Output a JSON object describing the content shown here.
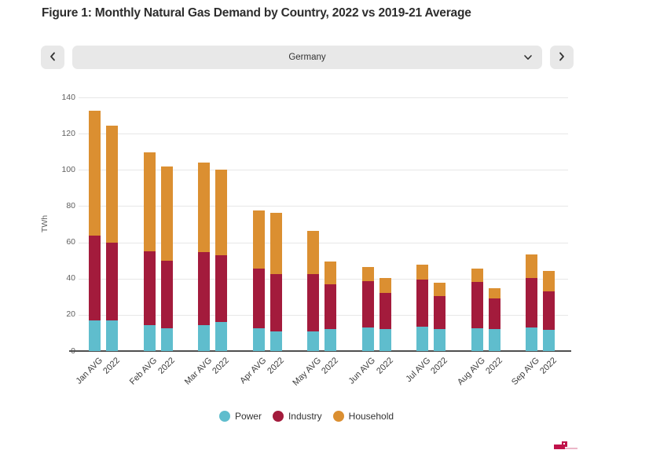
{
  "figure": {
    "title": "Figure 1: Monthly Natural Gas Demand by Country, 2022 vs 2019-21 Average"
  },
  "controls": {
    "selected_country": "Germany"
  },
  "chart_data": {
    "type": "bar",
    "stacked": true,
    "title": "Figure 1: Monthly Natural Gas Demand by Country, 2022 vs 2019-21 Average",
    "xlabel": "",
    "ylabel": "TWh",
    "unit": "TWh",
    "ylim": [
      0,
      140
    ],
    "yticks": [
      0,
      20,
      40,
      60,
      80,
      100,
      120,
      140
    ],
    "grid": true,
    "legend_position": "bottom",
    "categories": [
      "Jan AVG",
      "2022",
      "Feb AVG",
      "2022",
      "Mar AVG",
      "2022",
      "Apr AVG",
      "2022",
      "May AVG",
      "2022",
      "Jun AVG",
      "2022",
      "Jul AVG",
      "2022",
      "Aug AVG",
      "2022",
      "Sep AVG",
      "2022"
    ],
    "series": [
      {
        "name": "Power",
        "color": "#5fbdcd",
        "values": [
          17,
          17,
          14.5,
          12.5,
          14.5,
          16,
          12.5,
          11,
          11,
          12,
          13,
          12,
          13.5,
          12,
          12.5,
          12,
          13,
          11.5
        ]
      },
      {
        "name": "Industry",
        "color": "#a31b3c",
        "values": [
          46.5,
          43,
          40.5,
          37.5,
          40,
          37,
          33,
          31.5,
          31.5,
          25,
          25.5,
          20,
          26,
          18.5,
          25.5,
          17,
          27.5,
          21.5
        ]
      },
      {
        "name": "Household",
        "color": "#db8f31",
        "values": [
          69,
          64.5,
          54.5,
          52,
          49.5,
          47,
          32,
          34,
          24,
          12.5,
          8,
          8.5,
          8,
          7,
          7.5,
          5.5,
          13,
          11
        ]
      }
    ],
    "totals": [
      132.5,
      124.5,
      109.5,
      102,
      104,
      100,
      77.5,
      76.5,
      66.5,
      49.5,
      46.5,
      40.5,
      47.5,
      37.5,
      45.5,
      34.5,
      53.5,
      44
    ]
  },
  "colors": {
    "control_bg": "#e8e8e8",
    "gridline": "#e7e7e7",
    "axis_line": "#4f4f4f",
    "brand_mark": "#c0134a"
  }
}
